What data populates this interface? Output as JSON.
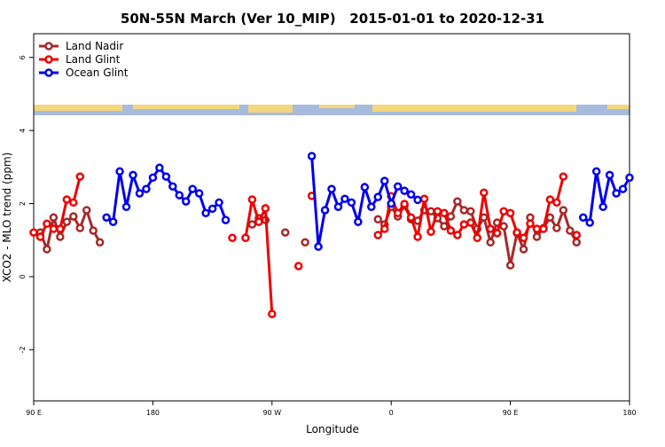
{
  "chart_data": {
    "type": "line",
    "title": "50N-55N March (Ver 10_MIP)   2015-01-01 to 2020-12-31",
    "x_label": "Longitude",
    "y_label": "XCO2 - MLO trend (ppm)",
    "xlim": [
      -270,
      180
    ],
    "xticks": [
      {
        "value": -270,
        "label": "90 E"
      },
      {
        "value": -180,
        "label": "180"
      },
      {
        "value": -90,
        "label": "90 W"
      },
      0,
      {
        "value": 90,
        "label": "90 E"
      },
      180
    ],
    "ylim": [
      -3.4,
      6.65
    ],
    "yticks": [
      -2,
      0,
      2,
      4,
      6
    ],
    "legend": "top-left",
    "series": [
      {
        "name": "Land Nadir",
        "color": "#a52a2a",
        "x": [
          -265,
          -260,
          -255,
          -250,
          -245,
          -240,
          -235,
          -230,
          -225,
          -220,
          -215,
          -105,
          -100,
          -95,
          -85,
          -80,
          -70,
          -65,
          -15,
          -10,
          -5,
          0,
          5,
          10,
          15,
          20,
          25,
          30,
          35,
          40,
          45,
          50,
          55,
          60,
          65,
          70,
          75,
          80,
          85,
          90,
          95,
          100,
          105,
          110,
          115,
          120,
          125,
          130,
          135,
          140
        ],
        "values": [
          1.21,
          0.75,
          1.62,
          1.09,
          1.5,
          1.65,
          1.33,
          1.82,
          1.26,
          0.94,
          null,
          1.43,
          1.6,
          1.55,
          null,
          1.21,
          null,
          0.94,
          null,
          1.57,
          1.43,
          1.91,
          1.65,
          1.94,
          1.57,
          1.53,
          1.82,
          1.79,
          1.6,
          1.38,
          1.65,
          2.06,
          1.82,
          1.79,
          1.31,
          1.62,
          0.94,
          1.48,
          1.38,
          0.31,
          1.19,
          0.75,
          1.62,
          1.09,
          1.33,
          1.62,
          1.33,
          1.82,
          1.26,
          0.94
        ]
      },
      {
        "name": "Land Glint",
        "color": "#ee0000",
        "x": [
          -270,
          -265,
          -260,
          -255,
          -250,
          -245,
          -240,
          -235,
          -125,
          -120,
          -115,
          -110,
          -105,
          -100,
          -95,
          -90,
          -80,
          -70,
          -65,
          -60,
          -15,
          -10,
          -5,
          0,
          5,
          10,
          15,
          20,
          25,
          30,
          35,
          40,
          45,
          50,
          55,
          60,
          65,
          70,
          75,
          80,
          85,
          90,
          95,
          100,
          105,
          110,
          115,
          120,
          125,
          130,
          135,
          140
        ],
        "values": [
          1.21,
          1.09,
          1.45,
          1.31,
          1.31,
          2.11,
          2.03,
          2.74,
          null,
          1.06,
          null,
          1.06,
          2.11,
          1.5,
          1.87,
          -1.02,
          null,
          0.29,
          null,
          2.21,
          null,
          1.14,
          1.31,
          2.2,
          1.74,
          1.99,
          1.62,
          1.09,
          2.13,
          1.23,
          1.79,
          1.74,
          1.26,
          1.14,
          1.43,
          1.48,
          1.06,
          2.3,
          1.31,
          1.19,
          1.79,
          1.74,
          1.21,
          1.06,
          1.45,
          1.31,
          1.31,
          2.11,
          2.03,
          2.74,
          null,
          1.14
        ]
      },
      {
        "name": "Ocean Glint",
        "color": "#0000ee",
        "x": [
          -215,
          -210,
          -205,
          -200,
          -195,
          -190,
          -185,
          -180,
          -175,
          -170,
          -165,
          -160,
          -155,
          -150,
          -145,
          -140,
          -135,
          -130,
          -125,
          -65,
          -60,
          -55,
          -50,
          -45,
          -40,
          -35,
          -30,
          -25,
          -20,
          -15,
          -10,
          -5,
          0,
          5,
          10,
          15,
          20,
          140,
          145,
          150,
          155,
          160,
          165,
          170,
          175,
          180
        ],
        "values": [
          1.62,
          1.5,
          2.88,
          1.91,
          2.78,
          2.28,
          2.4,
          2.71,
          2.98,
          2.74,
          2.47,
          2.23,
          2.06,
          2.4,
          2.28,
          1.74,
          1.86,
          2.03,
          1.55,
          null,
          3.3,
          0.82,
          1.82,
          2.4,
          1.91,
          2.13,
          2.03,
          1.5,
          2.45,
          1.91,
          2.18,
          2.62,
          2.0,
          2.47,
          2.35,
          2.25,
          2.1,
          null,
          1.62,
          1.48,
          2.88,
          1.91,
          2.78,
          2.28,
          2.4,
          2.71
        ]
      }
    ]
  }
}
